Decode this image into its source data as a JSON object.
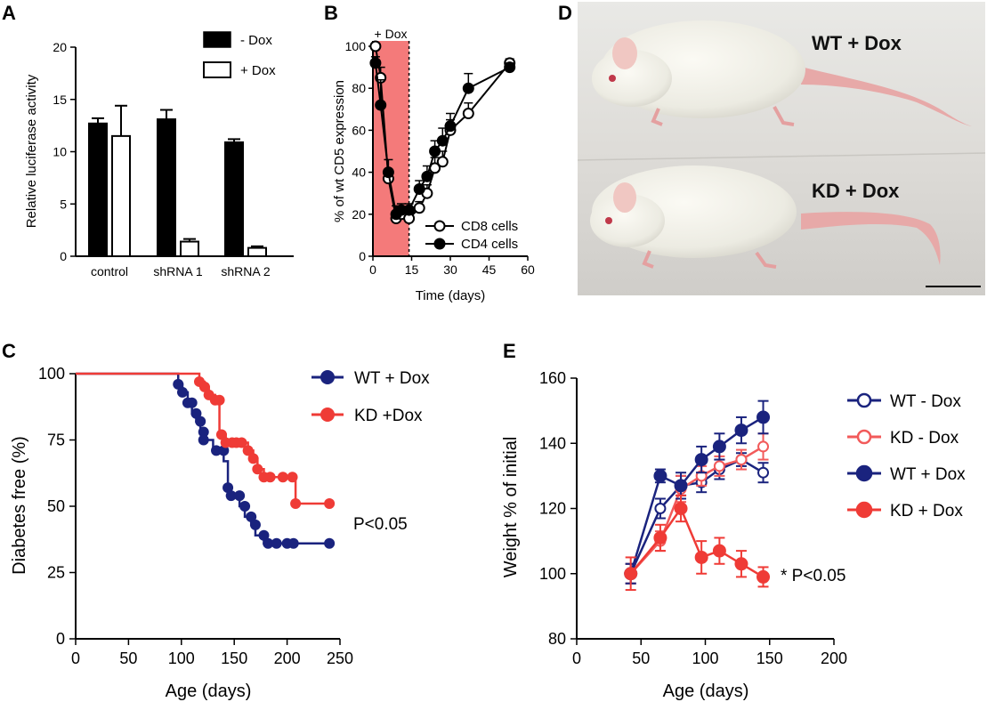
{
  "panels": {
    "A": "A",
    "B": "B",
    "C": "C",
    "D": "D",
    "E": "E"
  },
  "colors": {
    "black": "#000000",
    "navy": "#1a237e",
    "red": "#ef3b36",
    "pink": "#f25a5a",
    "shade": "#f47a7a"
  },
  "chart_data": [
    {
      "id": "A",
      "type": "bar",
      "ylabel": "Relative luciferase activity",
      "ylim": [
        0,
        20
      ],
      "yticks": [
        "0",
        "5",
        "10",
        "15",
        "20"
      ],
      "categories": [
        "control",
        "shRNA 1",
        "shRNA 2"
      ],
      "series": [
        {
          "name": "- Dox",
          "values": [
            12.7,
            13.1,
            10.9
          ],
          "errors": [
            0.5,
            0.9,
            0.3
          ]
        },
        {
          "name": "+ Dox",
          "values": [
            11.5,
            1.4,
            0.8
          ],
          "errors": [
            2.9,
            0.25,
            0.15
          ]
        }
      ],
      "legend": [
        "- Dox",
        "+ Dox"
      ]
    },
    {
      "id": "B",
      "type": "line",
      "xlabel": "Time (days)",
      "ylabel": "% of wt CD5 expression",
      "xlim": [
        0,
        60
      ],
      "ylim": [
        0,
        100
      ],
      "xticks": [
        "0",
        "15",
        "30",
        "45",
        "60"
      ],
      "yticks": [
        "0",
        "20",
        "40",
        "60",
        "80",
        "100"
      ],
      "shaded_label": "+ Dox",
      "shaded_range": [
        0,
        14
      ],
      "series": [
        {
          "name": "CD8 cells",
          "x": [
            1,
            3,
            6,
            9,
            11,
            14,
            18,
            21,
            24,
            27,
            30,
            37,
            53
          ],
          "y": [
            100,
            85,
            37,
            18,
            20,
            18,
            23,
            30,
            42,
            45,
            60,
            68,
            92
          ],
          "errors": [
            0,
            5,
            4,
            3,
            3,
            3,
            3,
            4,
            5,
            5,
            5,
            5,
            2
          ]
        },
        {
          "name": "CD4 cells",
          "x": [
            1,
            3,
            6,
            9,
            11,
            14,
            18,
            21,
            24,
            27,
            30,
            37,
            53
          ],
          "y": [
            92,
            72,
            40,
            20,
            22,
            22,
            32,
            38,
            50,
            55,
            62,
            80,
            90
          ],
          "errors": [
            3,
            12,
            6,
            4,
            3,
            3,
            4,
            5,
            5,
            6,
            6,
            7,
            2
          ]
        }
      ]
    },
    {
      "id": "C",
      "type": "line",
      "xlabel": "Age (days)",
      "ylabel": "Diabetes free (%)",
      "xlim": [
        0,
        250
      ],
      "ylim": [
        0,
        100
      ],
      "xticks": [
        "0",
        "50",
        "100",
        "150",
        "200",
        "250"
      ],
      "yticks": [
        "0",
        "25",
        "50",
        "75",
        "100"
      ],
      "annotation": "P<0.05",
      "series": [
        {
          "name": "WT + Dox",
          "steps": [
            [
              0,
              100
            ],
            [
              97,
              100
            ],
            [
              97,
              96
            ],
            [
              101,
              96
            ],
            [
              101,
              93
            ],
            [
              106,
              93
            ],
            [
              106,
              89
            ],
            [
              110,
              89
            ],
            [
              110,
              85
            ],
            [
              114,
              85
            ],
            [
              114,
              82
            ],
            [
              118,
              82
            ],
            [
              118,
              78
            ],
            [
              121,
              78
            ],
            [
              121,
              75
            ],
            [
              130,
              75
            ],
            [
              130,
              71
            ],
            [
              140,
              71
            ],
            [
              140,
              67
            ],
            [
              144,
              67
            ],
            [
              144,
              57
            ],
            [
              147,
              57
            ],
            [
              147,
              54
            ],
            [
              155,
              54
            ],
            [
              155,
              50
            ],
            [
              160,
              50
            ],
            [
              160,
              46
            ],
            [
              166,
              46
            ],
            [
              166,
              43
            ],
            [
              170,
              43
            ],
            [
              170,
              39
            ],
            [
              178,
              39
            ],
            [
              178,
              36
            ],
            [
              240,
              36
            ]
          ],
          "markers": [
            [
              97,
              96
            ],
            [
              101,
              93
            ],
            [
              106,
              89
            ],
            [
              110,
              89
            ],
            [
              114,
              85
            ],
            [
              118,
              82
            ],
            [
              121,
              78
            ],
            [
              121,
              75
            ],
            [
              133,
              71
            ],
            [
              140,
              71
            ],
            [
              144,
              57
            ],
            [
              147,
              54
            ],
            [
              155,
              54
            ],
            [
              160,
              50
            ],
            [
              166,
              46
            ],
            [
              170,
              43
            ],
            [
              178,
              39
            ],
            [
              182,
              36
            ],
            [
              190,
              36
            ],
            [
              200,
              36
            ],
            [
              206,
              36
            ],
            [
              240,
              36
            ]
          ]
        },
        {
          "name": "KD +Dox",
          "steps": [
            [
              0,
              100
            ],
            [
              117,
              100
            ],
            [
              117,
              97
            ],
            [
              122,
              97
            ],
            [
              122,
              95
            ],
            [
              126,
              95
            ],
            [
              126,
              92
            ],
            [
              132,
              92
            ],
            [
              132,
              90
            ],
            [
              136,
              90
            ],
            [
              136,
              77
            ],
            [
              142,
              77
            ],
            [
              142,
              74
            ],
            [
              163,
              74
            ],
            [
              163,
              71
            ],
            [
              168,
              71
            ],
            [
              168,
              68
            ],
            [
              172,
              68
            ],
            [
              172,
              64
            ],
            [
              178,
              64
            ],
            [
              178,
              61
            ],
            [
              208,
              61
            ],
            [
              208,
              51
            ],
            [
              240,
              51
            ]
          ],
          "markers": [
            [
              117,
              97
            ],
            [
              122,
              95
            ],
            [
              126,
              92
            ],
            [
              132,
              90
            ],
            [
              136,
              90
            ],
            [
              138,
              77
            ],
            [
              142,
              74
            ],
            [
              148,
              74
            ],
            [
              152,
              74
            ],
            [
              157,
              74
            ],
            [
              163,
              71
            ],
            [
              168,
              68
            ],
            [
              172,
              64
            ],
            [
              178,
              61
            ],
            [
              184,
              61
            ],
            [
              196,
              61
            ],
            [
              205,
              61
            ],
            [
              208,
              51
            ],
            [
              240,
              51
            ]
          ]
        }
      ]
    },
    {
      "id": "E",
      "type": "line",
      "xlabel": "Age (days)",
      "ylabel": "Weight % of initial",
      "xlim": [
        0,
        200
      ],
      "ylim": [
        80,
        160
      ],
      "xticks": [
        "0",
        "50",
        "100",
        "150",
        "200"
      ],
      "yticks": [
        "80",
        "100",
        "120",
        "140",
        "160"
      ],
      "annotation": "* P<0.05",
      "series": [
        {
          "name": "WT - Dox",
          "x": [
            42,
            65,
            81,
            97,
            111,
            128,
            145
          ],
          "y": [
            100,
            120,
            127,
            128,
            132,
            135,
            131
          ],
          "errors": [
            3,
            3,
            3,
            3,
            3,
            2,
            3
          ]
        },
        {
          "name": "KD - Dox",
          "x": [
            42,
            65,
            81,
            97,
            111,
            128,
            145
          ],
          "y": [
            100,
            110,
            126,
            130,
            133,
            135,
            139
          ],
          "errors": [
            3,
            3,
            4,
            3,
            3,
            3,
            4
          ]
        },
        {
          "name": "WT + Dox",
          "x": [
            42,
            65,
            81,
            97,
            111,
            128,
            145
          ],
          "y": [
            100,
            130,
            127,
            135,
            139,
            144,
            148
          ],
          "errors": [
            3,
            2,
            4,
            4,
            4,
            4,
            5
          ]
        },
        {
          "name": "KD + Dox",
          "x": [
            42,
            65,
            81,
            97,
            111,
            128,
            145
          ],
          "y": [
            100,
            111,
            120,
            105,
            107,
            103,
            99
          ],
          "errors": [
            5,
            4,
            4,
            5,
            4,
            4,
            3
          ]
        }
      ]
    }
  ],
  "photo": {
    "label_top": "WT + Dox",
    "label_bottom": "KD + Dox"
  }
}
